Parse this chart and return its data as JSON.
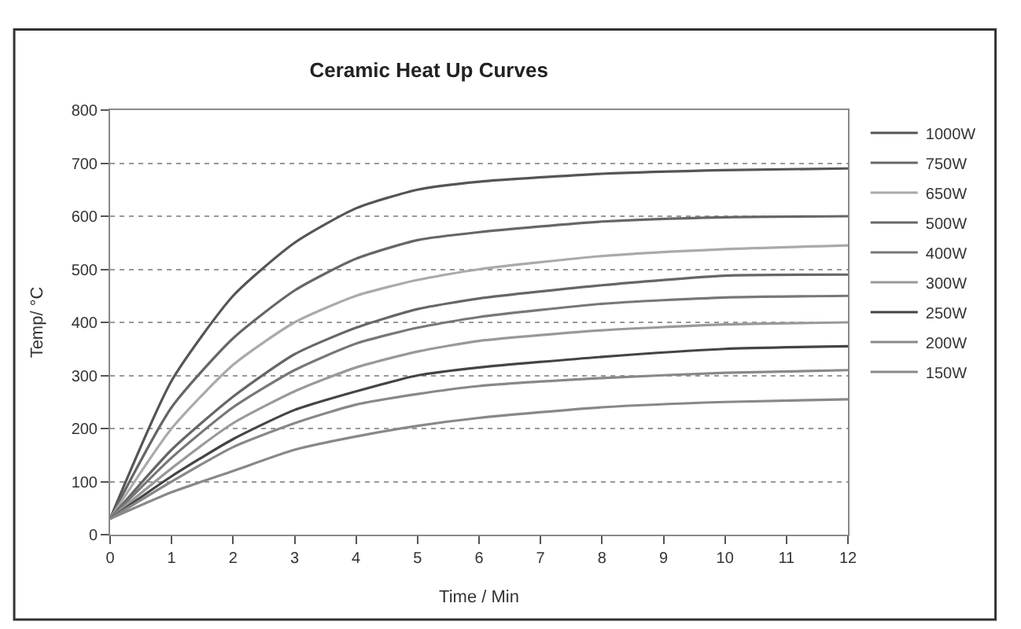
{
  "chart_data": {
    "type": "line",
    "title": "Ceramic Heat Up Curves",
    "xlabel": "Time / Min",
    "ylabel": "Temp/ °C",
    "x": [
      0,
      1,
      2,
      3,
      4,
      5,
      6,
      8,
      10,
      12
    ],
    "xlim": [
      0,
      12
    ],
    "xticks": [
      0,
      1,
      2,
      3,
      4,
      5,
      6,
      7,
      8,
      9,
      10,
      11,
      12
    ],
    "ylim": [
      0,
      800
    ],
    "yticks": [
      0,
      100,
      200,
      300,
      400,
      500,
      600,
      700,
      800
    ],
    "grid": "y",
    "legend": "right",
    "marker": "none",
    "line_style": "solid",
    "series": [
      {
        "name": "1000W",
        "color": "#555555",
        "values": [
          30,
          290,
          450,
          550,
          615,
          650,
          665,
          680,
          687,
          690
        ]
      },
      {
        "name": "750W",
        "color": "#666666",
        "values": [
          30,
          240,
          370,
          460,
          520,
          555,
          570,
          590,
          598,
          600
        ]
      },
      {
        "name": "650W",
        "color": "#aaaaaa",
        "values": [
          30,
          200,
          320,
          400,
          450,
          480,
          500,
          525,
          538,
          545
        ]
      },
      {
        "name": "500W",
        "color": "#666666",
        "values": [
          30,
          160,
          260,
          340,
          390,
          425,
          445,
          470,
          488,
          490
        ]
      },
      {
        "name": "400W",
        "color": "#777777",
        "values": [
          30,
          145,
          240,
          310,
          360,
          390,
          410,
          435,
          447,
          450
        ]
      },
      {
        "name": "300W",
        "color": "#999999",
        "values": [
          30,
          125,
          210,
          270,
          315,
          345,
          365,
          385,
          396,
          400
        ]
      },
      {
        "name": "250W",
        "color": "#444444",
        "values": [
          30,
          110,
          180,
          235,
          270,
          300,
          315,
          335,
          350,
          355
        ]
      },
      {
        "name": "200W",
        "color": "#888888",
        "values": [
          30,
          100,
          165,
          210,
          245,
          265,
          280,
          295,
          305,
          310
        ]
      },
      {
        "name": "150W",
        "color": "#888888",
        "values": [
          30,
          80,
          120,
          160,
          185,
          205,
          220,
          240,
          250,
          255
        ]
      }
    ]
  }
}
